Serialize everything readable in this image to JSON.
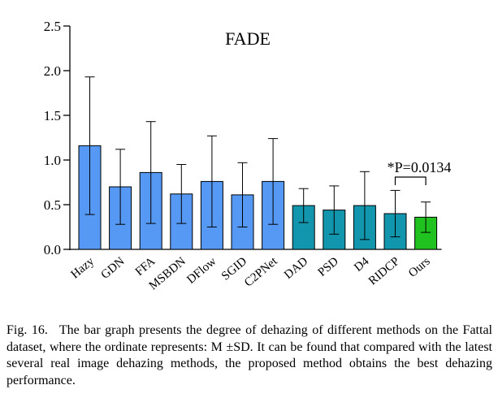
{
  "chart_data": {
    "type": "bar",
    "title": "FADE",
    "categories": [
      "Hazy",
      "GDN",
      "FFA",
      "MSBDN",
      "DFlow",
      "SGID",
      "C2PNet",
      "DAD",
      "PSD",
      "D4",
      "RIDCP",
      "Ours"
    ],
    "values": [
      1.16,
      0.7,
      0.86,
      0.62,
      0.76,
      0.61,
      0.76,
      0.49,
      0.44,
      0.49,
      0.4,
      0.36
    ],
    "sd": [
      0.77,
      0.42,
      0.57,
      0.33,
      0.51,
      0.36,
      0.48,
      0.19,
      0.27,
      0.38,
      0.26,
      0.17
    ],
    "ylim": [
      0,
      2.5
    ],
    "yticks": [
      "0.0",
      "0.5",
      "1.0",
      "1.5",
      "2.0",
      "2.5"
    ],
    "xlabel": "",
    "ylabel": "",
    "grid": false,
    "colors": [
      "#5599f5",
      "#5599f5",
      "#5599f5",
      "#5599f5",
      "#5599f5",
      "#5599f5",
      "#5599f5",
      "#1296ad",
      "#1296ad",
      "#1296ad",
      "#1296ad",
      "#1fc21f"
    ],
    "annotation": "*P=0.0134"
  },
  "caption": {
    "label": "Fig. 16.",
    "text": "The bar graph presents the degree of dehazing of different methods on the Fattal dataset, where the ordinate represents: M ±SD. It can be found that compared with the latest several real image dehazing methods, the proposed method obtains the best dehazing performance."
  }
}
